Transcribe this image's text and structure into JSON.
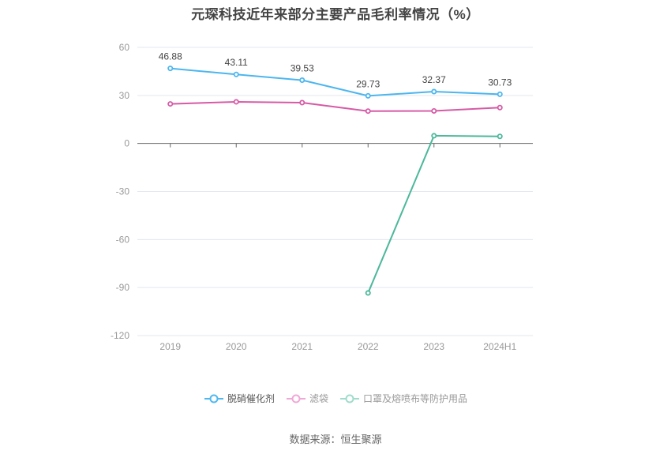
{
  "title": "元琛科技近年来部分主要产品毛利率情况（%）",
  "source": "数据来源：恒生聚源",
  "legend": [
    {
      "label": "脱硝催化剂",
      "color": "#4fb8f0",
      "text_color": "#555555"
    },
    {
      "label": "滤袋",
      "color": "#e879c0",
      "text_color": "#999999"
    },
    {
      "label": "口罩及熔喷布等防护用品",
      "color": "#8fd6c3",
      "text_color": "#999999"
    }
  ],
  "chart_data": {
    "type": "line",
    "title": "元琛科技近年来部分主要产品毛利率情况（%）",
    "xlabel": "",
    "ylabel": "",
    "categories": [
      "2019",
      "2020",
      "2021",
      "2022",
      "2023",
      "2024H1"
    ],
    "ylim": [
      -120,
      60
    ],
    "yticks": [
      60,
      30,
      0,
      -30,
      -60,
      -90,
      -120
    ],
    "grid": true,
    "legend_position": "bottom",
    "series": [
      {
        "name": "脱硝催化剂",
        "color": "#4cb6ee",
        "values": [
          46.88,
          43.11,
          39.53,
          29.73,
          32.37,
          30.73
        ],
        "labels_shown": true
      },
      {
        "name": "滤袋",
        "color": "#d65aa6",
        "values": [
          24.7,
          26.0,
          25.5,
          20.2,
          20.3,
          22.4
        ],
        "labels_shown": false
      },
      {
        "name": "口罩及熔喷布等防护用品",
        "color": "#4db89a",
        "values": [
          null,
          null,
          null,
          -93.4,
          4.8,
          4.4
        ],
        "labels_shown": false
      }
    ],
    "source": "数据来源：恒生聚源"
  }
}
